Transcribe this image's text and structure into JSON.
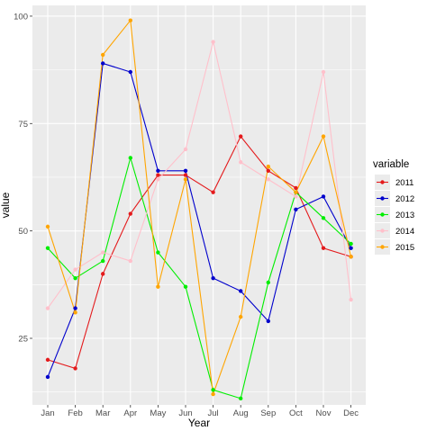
{
  "chart_data": {
    "type": "line",
    "title": "",
    "xlabel": "Year",
    "ylabel": "value",
    "categories": [
      "Jan",
      "Feb",
      "Mar",
      "Apr",
      "May",
      "Jun",
      "Jul",
      "Aug",
      "Sep",
      "Oct",
      "Nov",
      "Dec"
    ],
    "ylim": [
      9.5,
      102.5
    ],
    "yticks": [
      25,
      50,
      75,
      100
    ],
    "grid": true,
    "legend": {
      "title": "variable",
      "placement": "right"
    },
    "series": [
      {
        "name": "2011",
        "color": "#e41a1c",
        "values": [
          20,
          18,
          40,
          54,
          63,
          63,
          59,
          72,
          64,
          60,
          46,
          44
        ]
      },
      {
        "name": "2012",
        "color": "#0000cc",
        "values": [
          16,
          32,
          89,
          87,
          64,
          64,
          39,
          36,
          29,
          55,
          58,
          46
        ]
      },
      {
        "name": "2013",
        "color": "#00ee00",
        "values": [
          46,
          39,
          43,
          67,
          45,
          37,
          13,
          11,
          38,
          59,
          53,
          47
        ]
      },
      {
        "name": "2014",
        "color": "#ffc0cb",
        "values": [
          32,
          41,
          45,
          43,
          62,
          69,
          94,
          66,
          62,
          58,
          87,
          34
        ]
      },
      {
        "name": "2015",
        "color": "#ffa500",
        "values": [
          51,
          31,
          91,
          99,
          37,
          62,
          12,
          30,
          65,
          59,
          72,
          44
        ]
      }
    ]
  }
}
